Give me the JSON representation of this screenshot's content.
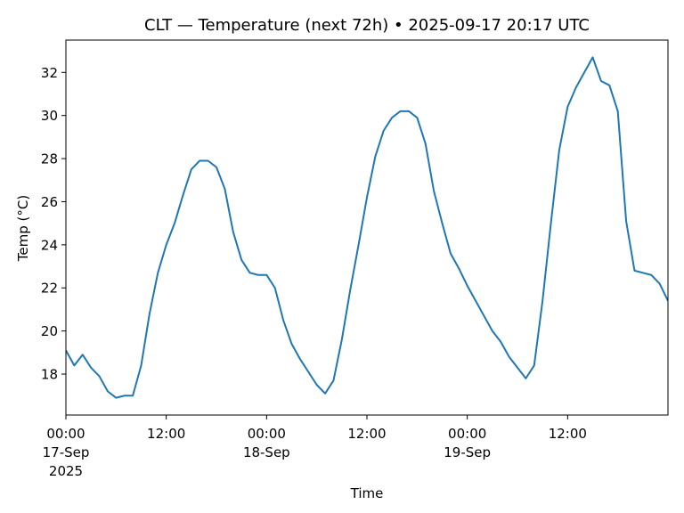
{
  "chart_data": {
    "type": "line",
    "title": "CLT — Temperature (next 72h) • 2025-09-17 20:17 UTC",
    "xlabel": "Time",
    "ylabel": "Temp (°C)",
    "ylim": [
      16.1,
      33.5
    ],
    "yticks": [
      18,
      20,
      22,
      24,
      26,
      28,
      30,
      32
    ],
    "x_start": "2025-09-17 00:00",
    "x_end": "2025-09-20 00:00",
    "xticks": [
      {
        "at": "2025-09-17 00:00",
        "lines": [
          "00:00",
          "17-Sep",
          "2025"
        ]
      },
      {
        "at": "2025-09-17 12:00",
        "lines": [
          "12:00"
        ]
      },
      {
        "at": "2025-09-18 00:00",
        "lines": [
          "00:00",
          "18-Sep"
        ]
      },
      {
        "at": "2025-09-18 12:00",
        "lines": [
          "12:00"
        ]
      },
      {
        "at": "2025-09-19 00:00",
        "lines": [
          "00:00",
          "19-Sep"
        ]
      },
      {
        "at": "2025-09-19 12:00",
        "lines": [
          "12:00"
        ]
      }
    ],
    "grid": false,
    "color": "#1f77b4",
    "series": [
      {
        "x": [
          "2025-09-17 00:00",
          "2025-09-17 01:00",
          "2025-09-17 02:00",
          "2025-09-17 03:00",
          "2025-09-17 04:00",
          "2025-09-17 05:00",
          "2025-09-17 06:00",
          "2025-09-17 07:00",
          "2025-09-17 08:00",
          "2025-09-17 09:00",
          "2025-09-17 10:00",
          "2025-09-17 11:00",
          "2025-09-17 12:00",
          "2025-09-17 13:00",
          "2025-09-17 14:00",
          "2025-09-17 15:00",
          "2025-09-17 16:00",
          "2025-09-17 17:00",
          "2025-09-17 18:00",
          "2025-09-17 19:00",
          "2025-09-17 20:00",
          "2025-09-17 21:00",
          "2025-09-17 22:00",
          "2025-09-17 23:00",
          "2025-09-18 00:00",
          "2025-09-18 01:00",
          "2025-09-18 02:00",
          "2025-09-18 03:00",
          "2025-09-18 04:00",
          "2025-09-18 05:00",
          "2025-09-18 06:00",
          "2025-09-18 07:00",
          "2025-09-18 08:00",
          "2025-09-18 09:00",
          "2025-09-18 10:00",
          "2025-09-18 11:00",
          "2025-09-18 12:00",
          "2025-09-18 13:00",
          "2025-09-18 14:00",
          "2025-09-18 15:00",
          "2025-09-18 16:00",
          "2025-09-18 17:00",
          "2025-09-18 18:00",
          "2025-09-18 19:00",
          "2025-09-18 20:00",
          "2025-09-18 21:00",
          "2025-09-18 22:00",
          "2025-09-18 23:00",
          "2025-09-19 00:00",
          "2025-09-19 01:00",
          "2025-09-19 02:00",
          "2025-09-19 03:00",
          "2025-09-19 04:00",
          "2025-09-19 05:00",
          "2025-09-19 06:00",
          "2025-09-19 07:00",
          "2025-09-19 08:00",
          "2025-09-19 09:00",
          "2025-09-19 10:00",
          "2025-09-19 11:00",
          "2025-09-19 12:00",
          "2025-09-19 13:00",
          "2025-09-19 14:00",
          "2025-09-19 15:00",
          "2025-09-19 16:00",
          "2025-09-19 17:00",
          "2025-09-19 18:00",
          "2025-09-19 19:00",
          "2025-09-19 20:00",
          "2025-09-19 21:00",
          "2025-09-19 22:00",
          "2025-09-19 23:00",
          "2025-09-20 00:00"
        ],
        "y": [
          19.1,
          18.4,
          18.9,
          18.3,
          17.9,
          17.2,
          16.9,
          17.0,
          17.0,
          18.4,
          20.8,
          22.7,
          24.0,
          25.0,
          26.3,
          27.5,
          27.9,
          27.9,
          27.6,
          26.6,
          24.6,
          23.3,
          22.7,
          22.6,
          22.6,
          22.0,
          20.5,
          19.4,
          18.7,
          18.1,
          17.5,
          17.1,
          17.7,
          19.6,
          21.9,
          24.0,
          26.2,
          28.1,
          29.3,
          29.9,
          30.2,
          30.2,
          29.9,
          28.7,
          26.5,
          25.0,
          23.6,
          22.9,
          22.1,
          21.4,
          20.7,
          20.0,
          19.5,
          18.8,
          18.3,
          17.8,
          18.4,
          21.4,
          25.0,
          28.4,
          30.4,
          31.3,
          32.0,
          32.7,
          31.6,
          31.4,
          30.2,
          25.1,
          22.8,
          22.7,
          22.6,
          22.2,
          21.4
        ]
      }
    ]
  }
}
